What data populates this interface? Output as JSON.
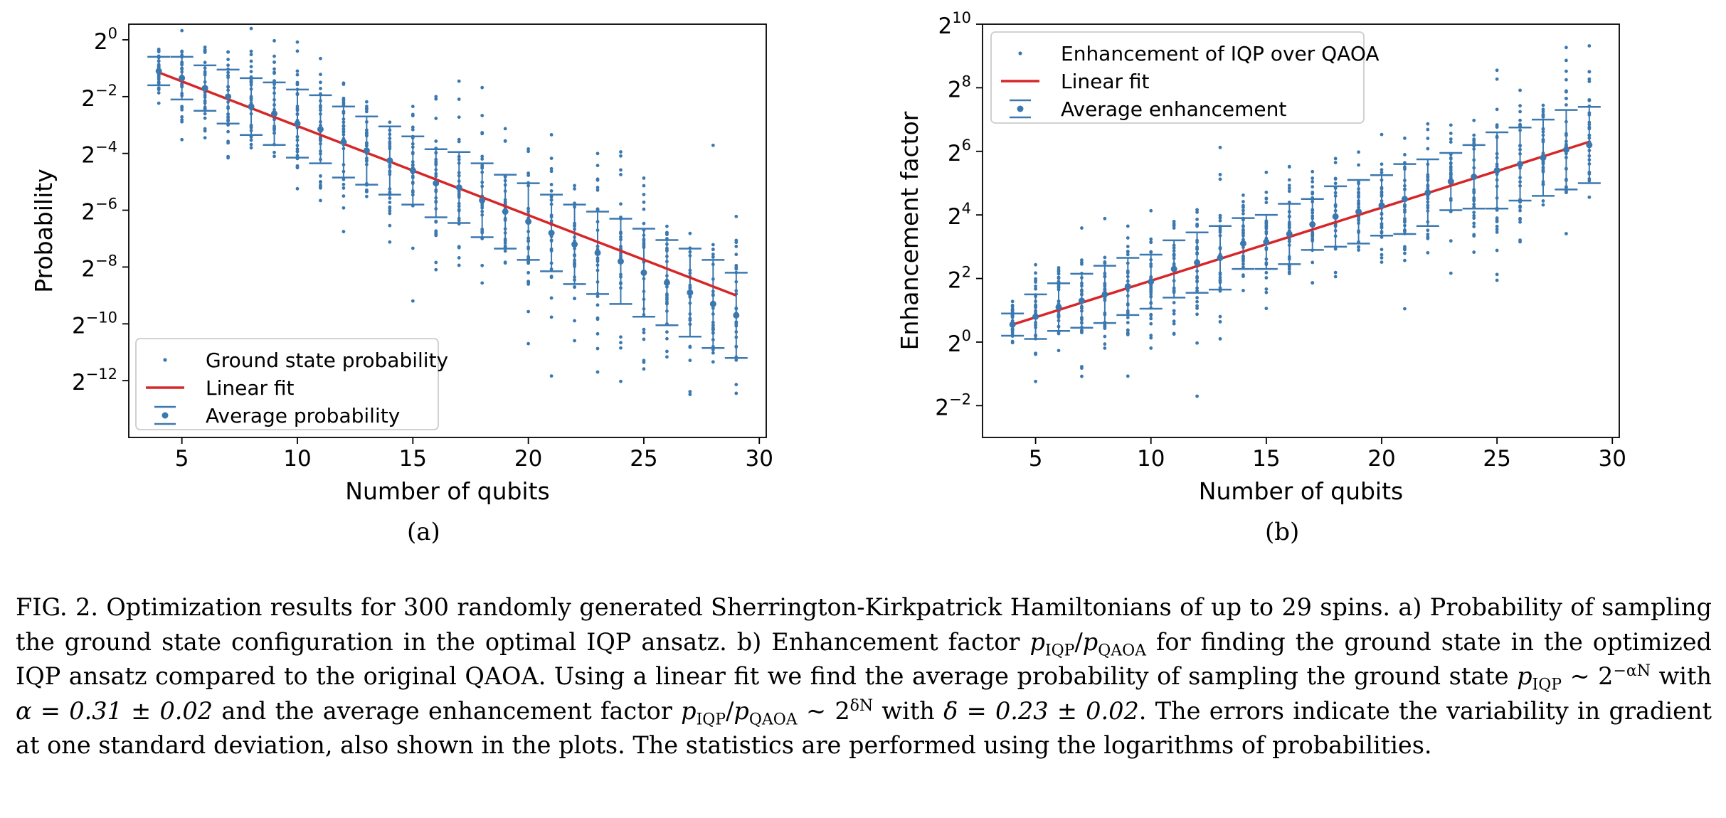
{
  "colors": {
    "marker": "#3b78b0",
    "fit": "#d62728",
    "axis": "#000000",
    "legend_edge": "#cccccc"
  },
  "chart_data": [
    {
      "panel_label": "(a)",
      "type": "scatter",
      "title": "",
      "xlabel": "Number of qubits",
      "ylabel": "Probability",
      "y_scale": "log2",
      "xlim": [
        2.7,
        30.3
      ],
      "ylim_log2": [
        -14.0,
        0.55
      ],
      "x_ticks": [
        5,
        10,
        15,
        20,
        25,
        30
      ],
      "x_tick_labels": [
        "5",
        "10",
        "15",
        "20",
        "25",
        "30"
      ],
      "y_tick_exponents": [
        0,
        -2,
        -4,
        -6,
        -8,
        -10,
        -12
      ],
      "y_tick_labels": [
        "2",
        "2",
        "2",
        "2",
        "2",
        "2",
        "2"
      ],
      "y_tick_exps_text": [
        "0",
        "−2",
        "−4",
        "−6",
        "−8",
        "−10",
        "−12"
      ],
      "grid": false,
      "legend_placement": "lower-left",
      "legend": [
        {
          "label": "Ground state probability",
          "marker": "dot"
        },
        {
          "label": "Linear fit",
          "marker": "line"
        },
        {
          "label": "Average probability",
          "marker": "errorbar"
        }
      ],
      "fit_log2": {
        "x": [
          4,
          29
        ],
        "y": [
          -1.15,
          -9.0
        ]
      },
      "average": {
        "x": [
          4,
          5,
          6,
          7,
          8,
          9,
          10,
          11,
          12,
          13,
          14,
          15,
          16,
          17,
          18,
          19,
          20,
          21,
          22,
          23,
          24,
          25,
          26,
          27,
          28,
          29
        ],
        "mean_log2": [
          -1.1,
          -1.35,
          -1.7,
          -2.0,
          -2.35,
          -2.6,
          -2.95,
          -3.15,
          -3.6,
          -3.9,
          -4.25,
          -4.6,
          -5.05,
          -5.2,
          -5.65,
          -6.05,
          -6.4,
          -6.8,
          -7.2,
          -7.5,
          -7.8,
          -8.2,
          -8.55,
          -8.9,
          -9.3,
          -9.7
        ],
        "std_log2": [
          0.5,
          0.75,
          0.8,
          0.95,
          1.0,
          1.1,
          1.2,
          1.2,
          1.25,
          1.2,
          1.2,
          1.2,
          1.2,
          1.25,
          1.3,
          1.3,
          1.35,
          1.35,
          1.4,
          1.45,
          1.5,
          1.55,
          1.5,
          1.55,
          1.55,
          1.5
        ],
        "cap_min_log2": [
          -1.0,
          -0.8,
          -0.8,
          -0.7,
          -1.0,
          -1.4,
          -1.6,
          -1.8,
          -2.2,
          -2.5,
          -2.9,
          -3.3,
          -3.6,
          -3.9,
          -4.2,
          -4.6,
          -5.0,
          -5.3,
          -5.6,
          -5.9,
          -6.3,
          -6.6,
          -6.9,
          -7.2,
          -7.5,
          -7.8
        ]
      },
      "samples": {
        "note_visible": "scatter of per-instance ground state probabilities (300 Hamiltonians)",
        "count_per_x": 30
      }
    },
    {
      "panel_label": "(b)",
      "type": "scatter",
      "title": "",
      "xlabel": "Number of qubits",
      "ylabel": "Enhancement factor",
      "y_scale": "log2",
      "xlim": [
        2.7,
        30.3
      ],
      "ylim_log2": [
        -3.0,
        10.0
      ],
      "x_ticks": [
        5,
        10,
        15,
        20,
        25,
        30
      ],
      "x_tick_labels": [
        "5",
        "10",
        "15",
        "20",
        "25",
        "30"
      ],
      "y_tick_exponents": [
        10,
        8,
        6,
        4,
        2,
        0,
        -2
      ],
      "y_tick_labels": [
        "2",
        "2",
        "2",
        "2",
        "2",
        "2",
        "2"
      ],
      "y_tick_exps_text": [
        "10",
        "8",
        "6",
        "4",
        "2",
        "0",
        "−2"
      ],
      "grid": false,
      "legend_placement": "upper-left",
      "legend": [
        {
          "label": "Enhancement of IQP over QAOA",
          "marker": "dot"
        },
        {
          "label": "Linear fit",
          "marker": "line"
        },
        {
          "label": "Average enhancement",
          "marker": "errorbar"
        }
      ],
      "fit_log2": {
        "x": [
          4,
          29
        ],
        "y": [
          0.55,
          6.3
        ]
      },
      "average": {
        "x": [
          4,
          5,
          6,
          7,
          8,
          9,
          10,
          11,
          12,
          13,
          14,
          15,
          16,
          17,
          18,
          19,
          20,
          21,
          22,
          23,
          24,
          25,
          26,
          27,
          28,
          29
        ],
        "mean_log2": [
          0.55,
          0.8,
          1.1,
          1.3,
          1.5,
          1.75,
          1.9,
          2.3,
          2.5,
          2.65,
          3.1,
          3.15,
          3.4,
          3.7,
          3.95,
          4.1,
          4.3,
          4.5,
          4.7,
          5.05,
          5.2,
          5.4,
          5.6,
          5.8,
          6.05,
          6.2
        ],
        "std_log2": [
          0.35,
          0.7,
          0.75,
          0.85,
          0.9,
          0.9,
          0.85,
          0.9,
          0.95,
          1.0,
          0.8,
          0.85,
          0.95,
          0.8,
          0.95,
          1.0,
          0.95,
          1.1,
          1.05,
          0.9,
          1.0,
          1.2,
          1.15,
          1.2,
          1.25,
          1.2
        ]
      },
      "samples": {
        "note_visible": "scatter of per-instance enhancement factors (300 Hamiltonians)",
        "count_per_x": 30
      }
    }
  ],
  "caption": {
    "p1": "FIG. 2. Optimization results for 300 randomly generated Sherrington-Kirkpatrick Hamiltonians of up to 29 spins. a) Probability of sampling the ground state configuration in the optimal IQP ansatz. b) Enhancement factor ",
    "sym_p": "p",
    "sub_iqp": "IQP",
    "slash": "/",
    "sub_qaoa": "QAOA",
    "p2": " for finding the ground state in the optimized IQP ansatz compared to the original QAOA. Using a linear fit we find the average probability of sampling the ground state ",
    "sim1": " ∼ 2",
    "sup1": "−αN",
    "p3": " with ",
    "alpha_eq": "α = 0.31 ± 0.02",
    "p4": " and the average enhancement factor ",
    "sim2": " ∼ 2",
    "sup2": "δN",
    "p5": " with ",
    "delta_eq": "δ = 0.23 ± 0.02",
    "p6": ". The errors indicate the variability in gradient at one standard deviation, also shown in the plots. The statistics are performed using the logarithms of probabilities."
  }
}
